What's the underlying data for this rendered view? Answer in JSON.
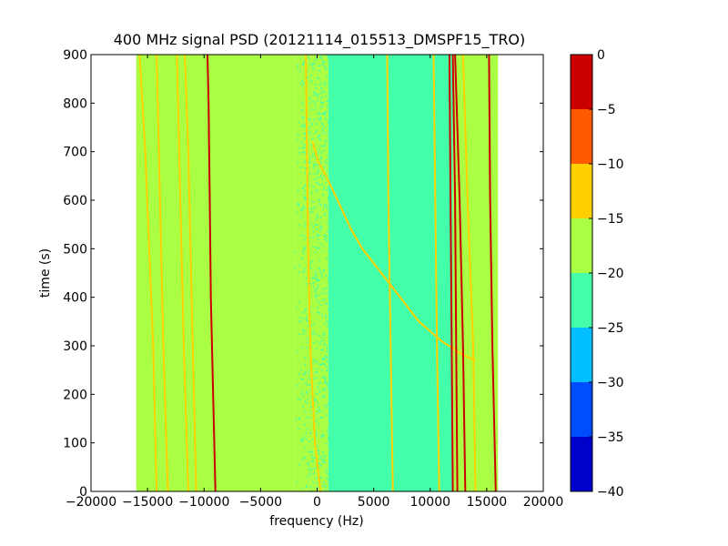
{
  "chart_data": {
    "type": "heatmap",
    "title": "400 MHz signal PSD (20121114_015513_DMSPF15_TRO)",
    "xlabel": "frequency (Hz)",
    "ylabel": "time (s)",
    "xlim": [
      -20000,
      20000
    ],
    "ylim": [
      0,
      900
    ],
    "data_extent_x": [
      -16000,
      16000
    ],
    "x_ticks": [
      -20000,
      -15000,
      -10000,
      -5000,
      0,
      5000,
      10000,
      15000,
      20000
    ],
    "x_tick_labels": [
      "−20000",
      "−15000",
      "−10000",
      "−5000",
      "0",
      "5000",
      "10000",
      "15000",
      "20000"
    ],
    "y_ticks": [
      0,
      100,
      200,
      300,
      400,
      500,
      600,
      700,
      800,
      900
    ],
    "y_tick_labels": [
      "0",
      "100",
      "200",
      "300",
      "400",
      "500",
      "600",
      "700",
      "800",
      "900"
    ],
    "colorbar": {
      "min": -40,
      "max": 0,
      "levels": [
        -40,
        -35,
        -30,
        -25,
        -20,
        -15,
        -10,
        -5,
        0
      ],
      "tick_labels": [
        "−40",
        "−35",
        "−30",
        "−25",
        "−20",
        "−15",
        "−10",
        "−5",
        "0"
      ],
      "colors": [
        "#0000cd",
        "#004cff",
        "#00beff",
        "#44ffaa",
        "#aaff44",
        "#ffd000",
        "#ff5a00",
        "#cd0000"
      ]
    },
    "background_regions": [
      {
        "x": [
          -16000,
          -2000
        ],
        "level": -17.5
      },
      {
        "x": [
          -2000,
          1000
        ],
        "level": -17.5,
        "texture": "speckle"
      },
      {
        "x": [
          1000,
          12000
        ],
        "level": -22.5
      },
      {
        "x": [
          12000,
          16000
        ],
        "level": -17.5
      }
    ],
    "series": [
      {
        "level": -12.5,
        "points": [
          [
            -14200,
            0
          ],
          [
            -14500,
            300
          ],
          [
            -15200,
            700
          ],
          [
            -15700,
            900
          ]
        ]
      },
      {
        "level": -12.5,
        "points": [
          [
            -13200,
            0
          ],
          [
            -13600,
            300
          ],
          [
            -14000,
            700
          ],
          [
            -14200,
            900
          ]
        ]
      },
      {
        "level": -12.5,
        "points": [
          [
            -11400,
            0
          ],
          [
            -11800,
            300
          ],
          [
            -12200,
            700
          ],
          [
            -12400,
            900
          ]
        ]
      },
      {
        "level": -12.5,
        "points": [
          [
            -10700,
            0
          ],
          [
            -11000,
            300
          ],
          [
            -11400,
            700
          ],
          [
            -11700,
            900
          ]
        ]
      },
      {
        "level": -2.5,
        "points": [
          [
            -9000,
            0
          ],
          [
            -9200,
            200
          ],
          [
            -9400,
            400
          ],
          [
            -9500,
            600
          ],
          [
            -9600,
            800
          ],
          [
            -9700,
            900
          ]
        ]
      },
      {
        "level": -12.5,
        "points": [
          [
            300,
            0
          ],
          [
            -200,
            100
          ],
          [
            -600,
            300
          ],
          [
            -800,
            500
          ],
          [
            -900,
            700
          ],
          [
            -1000,
            900
          ]
        ]
      },
      {
        "level": -12.5,
        "points": [
          [
            -400,
            720
          ],
          [
            100,
            680
          ],
          [
            1000,
            640
          ],
          [
            2000,
            590
          ],
          [
            3000,
            540
          ],
          [
            4000,
            500
          ],
          [
            5000,
            470
          ],
          [
            6000,
            440
          ],
          [
            7000,
            410
          ],
          [
            8000,
            380
          ],
          [
            9000,
            350
          ],
          [
            10000,
            330
          ],
          [
            11000,
            310
          ],
          [
            12000,
            295
          ],
          [
            13000,
            280
          ],
          [
            14000,
            270
          ]
        ]
      },
      {
        "level": -15,
        "points": [
          [
            6700,
            0
          ],
          [
            6500,
            300
          ],
          [
            6300,
            600
          ],
          [
            6200,
            900
          ]
        ]
      },
      {
        "level": -12.5,
        "points": [
          [
            10800,
            0
          ],
          [
            10600,
            300
          ],
          [
            10400,
            700
          ],
          [
            10300,
            900
          ]
        ]
      },
      {
        "level": -2.5,
        "points": [
          [
            12000,
            0
          ],
          [
            11900,
            300
          ],
          [
            11800,
            600
          ],
          [
            11700,
            900
          ]
        ]
      },
      {
        "level": -2.5,
        "points": [
          [
            12400,
            0
          ],
          [
            12300,
            300
          ],
          [
            12200,
            600
          ],
          [
            12000,
            900
          ]
        ]
      },
      {
        "level": -2.5,
        "points": [
          [
            13100,
            0
          ],
          [
            12900,
            300
          ],
          [
            12600,
            600
          ],
          [
            12200,
            900
          ]
        ]
      },
      {
        "level": -12.5,
        "points": [
          [
            14000,
            0
          ],
          [
            13800,
            300
          ],
          [
            13300,
            600
          ],
          [
            12900,
            900
          ]
        ]
      },
      {
        "level": -2.5,
        "points": [
          [
            15800,
            0
          ],
          [
            15500,
            300
          ],
          [
            15300,
            600
          ],
          [
            15200,
            900
          ]
        ]
      }
    ]
  }
}
